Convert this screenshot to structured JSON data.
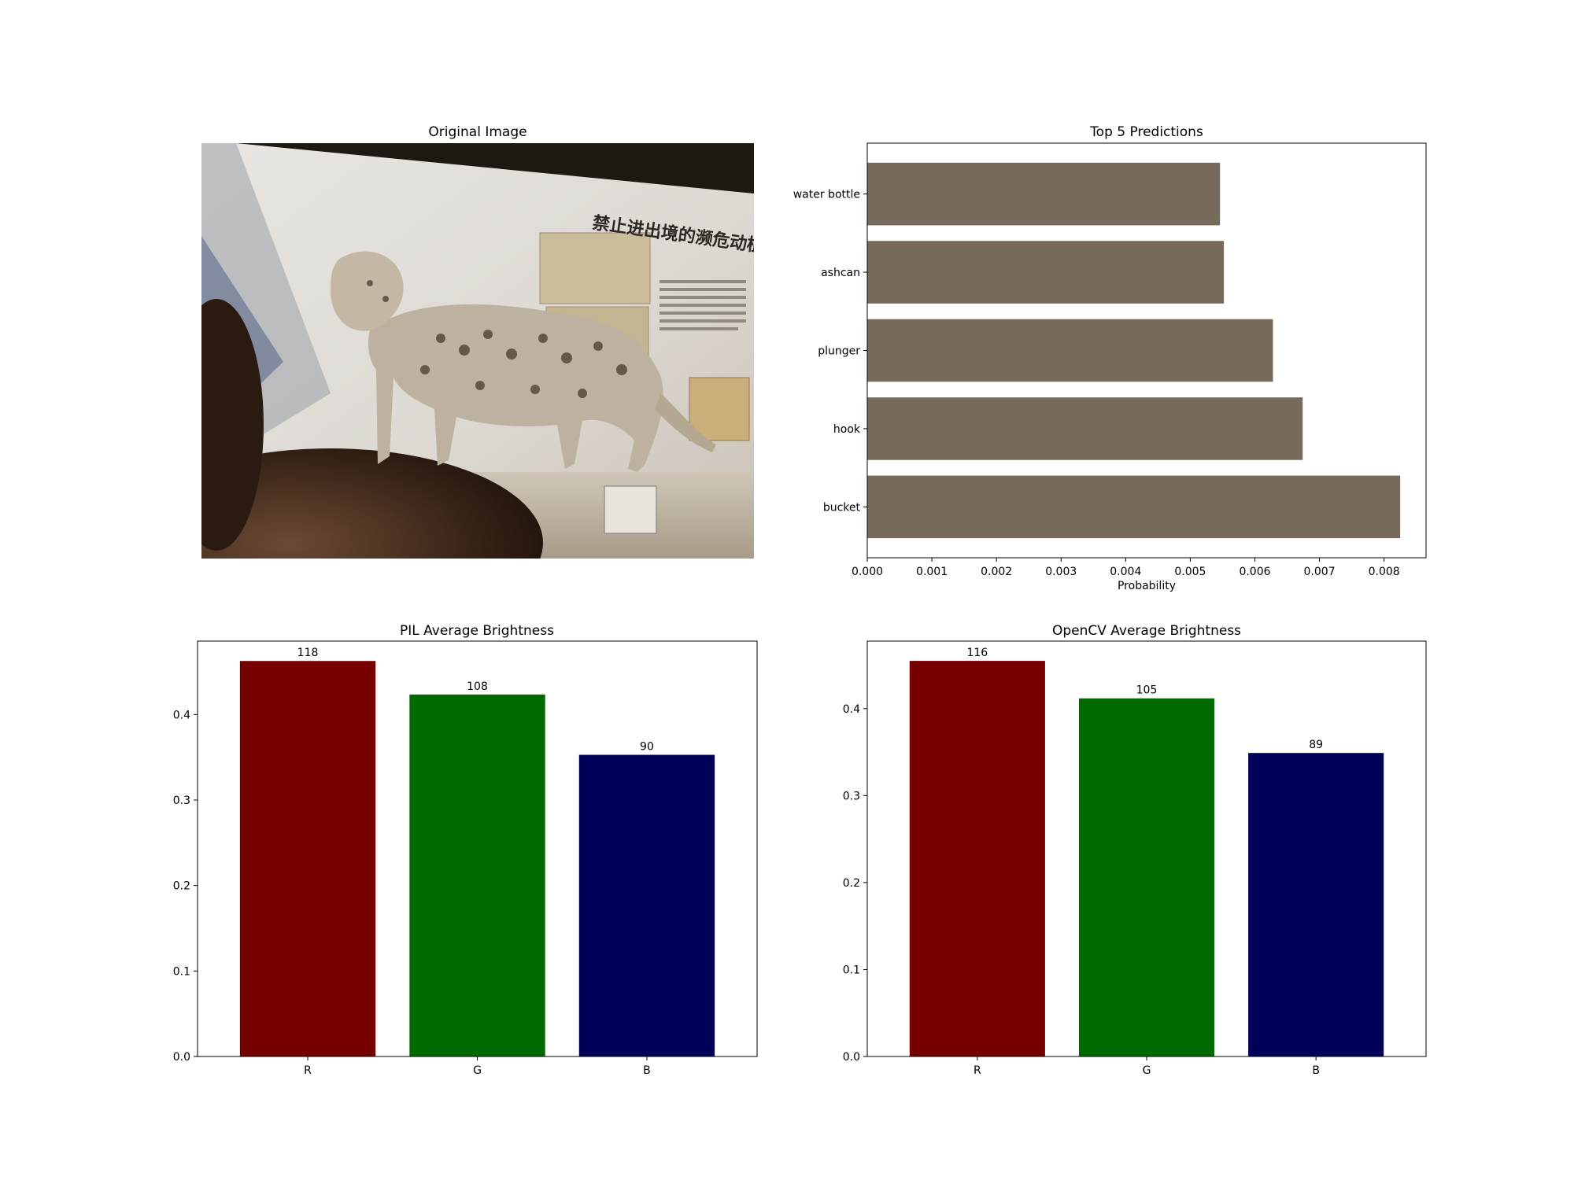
{
  "panels": {
    "original_image": {
      "title": "Original Image",
      "sign_text": "禁止进出境的濒危动植物"
    }
  },
  "chart_data": [
    {
      "type": "bar",
      "orientation": "horizontal",
      "title": "Top 5 Predictions",
      "xlabel": "Probability",
      "ylabel": "",
      "categories": [
        "water bottle",
        "ashcan",
        "plunger",
        "hook",
        "bucket"
      ],
      "values": [
        0.00546,
        0.00552,
        0.00628,
        0.00674,
        0.00825
      ],
      "xlim": [
        0,
        0.00865
      ],
      "xticks": [
        "0.000",
        "0.001",
        "0.002",
        "0.003",
        "0.004",
        "0.005",
        "0.006",
        "0.007",
        "0.008"
      ],
      "bar_color": "#766a5b",
      "grid": false
    },
    {
      "type": "bar",
      "title": "PIL Average Brightness",
      "xlabel": "",
      "ylabel": "",
      "categories": [
        "R",
        "G",
        "B"
      ],
      "values": [
        0.4627,
        0.4235,
        0.3529
      ],
      "data_labels": [
        "118",
        "108",
        "90"
      ],
      "ylim": [
        0,
        0.4859
      ],
      "yticks": [
        "0.0",
        "0.1",
        "0.2",
        "0.3",
        "0.4"
      ],
      "colors": [
        "#760000",
        "#006a00",
        "#000058"
      ],
      "grid": false
    },
    {
      "type": "bar",
      "title": "OpenCV Average Brightness",
      "xlabel": "",
      "ylabel": "",
      "categories": [
        "R",
        "G",
        "B"
      ],
      "values": [
        0.4549,
        0.4118,
        0.349
      ],
      "data_labels": [
        "116",
        "105",
        "89"
      ],
      "ylim": [
        0,
        0.4776
      ],
      "yticks": [
        "0.0",
        "0.1",
        "0.2",
        "0.3",
        "0.4"
      ],
      "colors": [
        "#760000",
        "#006a00",
        "#000058"
      ],
      "grid": false
    }
  ]
}
